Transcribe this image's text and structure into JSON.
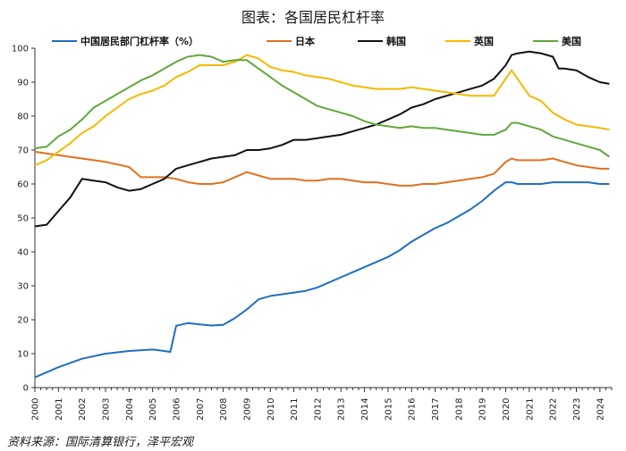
{
  "header": {
    "title": "图表：各国居民杠杆率"
  },
  "footer": {
    "source": "资料来源：国际清算银行，泽平宏观"
  },
  "chart_data": {
    "type": "line",
    "title": "图表：各国居民杠杆率",
    "xlabel": "",
    "ylabel": "",
    "xlim": [
      2000,
      2024.5
    ],
    "ylim": [
      0,
      100
    ],
    "yticks": [
      0,
      10,
      20,
      30,
      40,
      50,
      60,
      70,
      80,
      90,
      100
    ],
    "xticks": [
      "2000",
      "2001",
      "2002",
      "2003",
      "2004",
      "2005",
      "2006",
      "2007",
      "2008",
      "2009",
      "2010",
      "2011",
      "2012",
      "2013",
      "2014",
      "2015",
      "2016",
      "2017",
      "2018",
      "2019",
      "2020",
      "2021",
      "2022",
      "2023",
      "2024"
    ],
    "grid": false,
    "legend_position": "top",
    "series": [
      {
        "name": "中国居民部门杠杆率（%）",
        "color": "#1f6fbf",
        "x": [
          2000,
          2001,
          2002,
          2003,
          2004,
          2005,
          2005.5,
          2005.75,
          2006,
          2006.5,
          2007,
          2007.5,
          2008,
          2008.5,
          2009,
          2009.5,
          2010,
          2010.5,
          2011,
          2011.5,
          2012,
          2012.5,
          2013,
          2013.5,
          2014,
          2014.5,
          2015,
          2015.5,
          2016,
          2016.5,
          2017,
          2017.5,
          2018,
          2018.5,
          2019,
          2019.5,
          2020,
          2020.25,
          2020.5,
          2021,
          2021.5,
          2022,
          2022.5,
          2023,
          2023.5,
          2024,
          2024.4
        ],
        "values": [
          3,
          6,
          8.5,
          10,
          10.8,
          11.2,
          10.8,
          10.5,
          18.2,
          19.0,
          18.6,
          18.3,
          18.5,
          20.5,
          23,
          26,
          27,
          27.5,
          28,
          28.5,
          29.5,
          31,
          32.5,
          34,
          35.5,
          37,
          38.5,
          40.5,
          43,
          45,
          47,
          48.5,
          50.5,
          52.5,
          55,
          58,
          60.5,
          60.5,
          60,
          60,
          60,
          60.5,
          60.5,
          60.5,
          60.5,
          60,
          60
        ]
      },
      {
        "name": "日本",
        "color": "#e07020",
        "x": [
          2000,
          2001,
          2002,
          2003,
          2004,
          2004.5,
          2005,
          2005.5,
          2006,
          2006.5,
          2007,
          2007.5,
          2008,
          2008.5,
          2009,
          2009.5,
          2010,
          2010.5,
          2011,
          2011.5,
          2012,
          2012.5,
          2013,
          2013.5,
          2014,
          2014.5,
          2015,
          2015.5,
          2016,
          2016.5,
          2017,
          2017.5,
          2018,
          2018.5,
          2019,
          2019.5,
          2020,
          2020.25,
          2020.5,
          2021,
          2021.5,
          2022,
          2022.5,
          2023,
          2023.5,
          2024,
          2024.4
        ],
        "values": [
          69.5,
          68.5,
          67.5,
          66.5,
          65,
          62,
          62,
          62,
          61.5,
          60.5,
          60,
          60,
          60.5,
          62,
          63.5,
          62.5,
          61.5,
          61.5,
          61.5,
          61,
          61,
          61.5,
          61.5,
          61,
          60.5,
          60.5,
          60,
          59.5,
          59.5,
          60,
          60,
          60.5,
          61,
          61.5,
          62,
          63,
          66.5,
          67.5,
          67,
          67,
          67,
          67.5,
          66.5,
          65.5,
          65,
          64.5,
          64.5
        ]
      },
      {
        "name": "韩国",
        "color": "#111111",
        "x": [
          2000,
          2000.5,
          2001,
          2001.5,
          2002,
          2002.5,
          2003,
          2003.5,
          2004,
          2004.5,
          2005,
          2005.5,
          2006,
          2006.5,
          2007,
          2007.5,
          2008,
          2008.5,
          2009,
          2009.5,
          2010,
          2010.5,
          2011,
          2011.5,
          2012,
          2012.5,
          2013,
          2013.5,
          2014,
          2014.5,
          2015,
          2015.5,
          2016,
          2016.5,
          2017,
          2017.5,
          2018,
          2018.5,
          2019,
          2019.5,
          2020,
          2020.25,
          2020.5,
          2021,
          2021.5,
          2022,
          2022.25,
          2022.5,
          2023,
          2023.5,
          2024,
          2024.4
        ],
        "values": [
          47.5,
          48,
          52,
          56,
          61.5,
          61,
          60.5,
          59,
          58,
          58.5,
          60,
          61.5,
          64.5,
          65.5,
          66.5,
          67.5,
          68,
          68.5,
          70,
          70,
          70.5,
          71.5,
          73,
          73,
          73.5,
          74,
          74.5,
          75.5,
          76.5,
          77.5,
          79,
          80.5,
          82.5,
          83.5,
          85,
          86,
          87,
          88,
          89,
          91,
          95,
          98,
          98.5,
          99,
          98.5,
          97.5,
          94,
          94,
          93.5,
          91.5,
          90,
          89.5
        ]
      },
      {
        "name": "英国",
        "color": "#f5b800",
        "x": [
          2000,
          2000.5,
          2001,
          2001.5,
          2002,
          2002.5,
          2003,
          2003.5,
          2004,
          2004.5,
          2005,
          2005.5,
          2006,
          2006.5,
          2007,
          2007.5,
          2008,
          2008.5,
          2009,
          2009.5,
          2010,
          2010.5,
          2011,
          2011.5,
          2012,
          2012.5,
          2013,
          2013.5,
          2014,
          2014.5,
          2015,
          2015.5,
          2016,
          2016.5,
          2017,
          2017.5,
          2018,
          2018.5,
          2019,
          2019.5,
          2020,
          2020.25,
          2020.5,
          2021,
          2021.5,
          2022,
          2022.5,
          2023,
          2023.5,
          2024,
          2024.4
        ],
        "values": [
          65.5,
          67,
          69.5,
          72,
          75,
          77,
          80,
          82.5,
          85,
          86.5,
          87.5,
          89,
          91.5,
          93,
          95,
          95,
          95,
          96,
          98,
          97,
          94.5,
          93.5,
          93,
          92,
          91.5,
          91,
          90,
          89,
          88.5,
          88,
          88,
          88,
          88.5,
          88,
          87.5,
          87,
          86.5,
          86,
          86,
          86,
          91,
          93.5,
          91,
          86,
          84.5,
          81,
          79,
          77.5,
          77,
          76.5,
          76
        ]
      },
      {
        "name": "美国",
        "color": "#5fa83c",
        "x": [
          2000,
          2000.5,
          2001,
          2001.5,
          2002,
          2002.5,
          2003,
          2003.5,
          2004,
          2004.5,
          2005,
          2005.5,
          2006,
          2006.5,
          2007,
          2007.5,
          2008,
          2008.5,
          2009,
          2009.5,
          2010,
          2010.5,
          2011,
          2011.5,
          2012,
          2012.5,
          2013,
          2013.5,
          2014,
          2014.5,
          2015,
          2015.5,
          2016,
          2016.5,
          2017,
          2017.5,
          2018,
          2018.5,
          2019,
          2019.5,
          2020,
          2020.25,
          2020.5,
          2021,
          2021.5,
          2022,
          2022.5,
          2023,
          2023.5,
          2024,
          2024.4
        ],
        "values": [
          70.5,
          71,
          74,
          76,
          79,
          82.5,
          84.5,
          86.5,
          88.5,
          90.5,
          92,
          94,
          96,
          97.5,
          98,
          97.5,
          96,
          96.5,
          96.5,
          94,
          91.5,
          89,
          87,
          85,
          83,
          82,
          81,
          80,
          78.5,
          77.5,
          77,
          76.5,
          77,
          76.5,
          76.5,
          76,
          75.5,
          75,
          74.5,
          74.5,
          76,
          78,
          78,
          77,
          76,
          74,
          73,
          72,
          71,
          70,
          68
        ]
      }
    ]
  }
}
